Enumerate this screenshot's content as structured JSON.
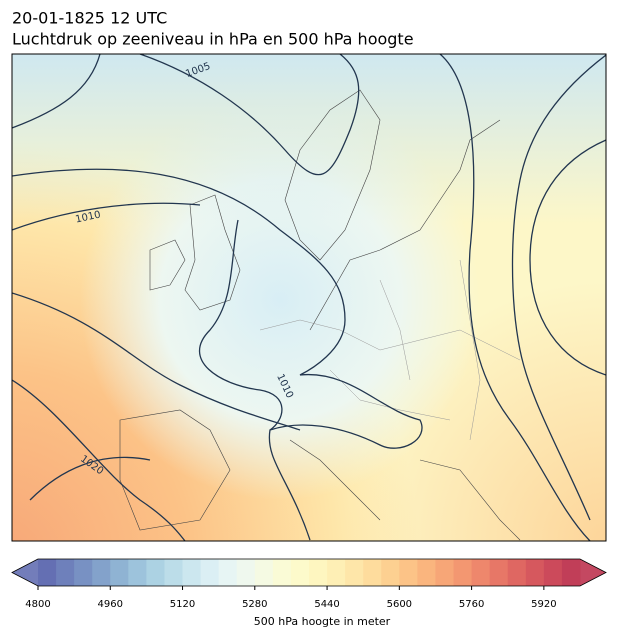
{
  "header": {
    "date": "20-01-1825 12 UTC",
    "title": "Luchtdruk op zeeniveau in hPa en 500 hPa hoogte"
  },
  "contour_labels": [
    "1005",
    "1010",
    "1010",
    "1020"
  ],
  "colorbar": {
    "min": 4800,
    "max": 6000,
    "ticks": [
      4800,
      4960,
      5120,
      5280,
      5440,
      5600,
      5760,
      5920
    ],
    "label": "500 hPa hoogte in meter",
    "colors": [
      "#646fb3",
      "#6e80bb",
      "#7891c3",
      "#83a2cb",
      "#8fb3d3",
      "#9dc3dc",
      "#acd2e3",
      "#bcdde9",
      "#cce7ef",
      "#dbeff4",
      "#e7f5f4",
      "#eff8ee",
      "#f5fae3",
      "#fafbd6",
      "#fdfacb",
      "#fef6c0",
      "#feefb5",
      "#fee6a9",
      "#fedc9d",
      "#fdd091",
      "#fcc387",
      "#fab57e",
      "#f7a677",
      "#f39771",
      "#ee876c",
      "#e77767",
      "#df6762",
      "#d6585e",
      "#cc4a5b",
      "#c13e58"
    ]
  }
}
